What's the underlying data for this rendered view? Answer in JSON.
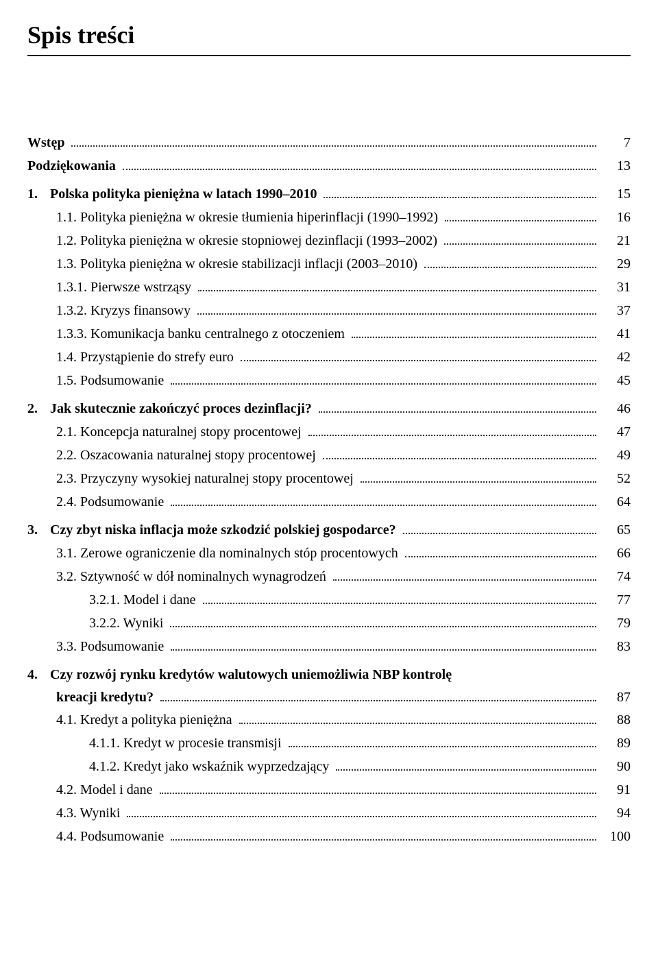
{
  "colors": {
    "background": "#ffffff",
    "text": "#000000",
    "dots": "#333333"
  },
  "typography": {
    "title_fontsize": 36,
    "body_fontsize": 20,
    "line_height": 1.65,
    "font_family": "Georgia, Times New Roman, serif"
  },
  "title": "Spis treści",
  "entries": [
    {
      "label": "Wstęp",
      "page": "7",
      "indent": 0,
      "bold": true,
      "gap": false
    },
    {
      "label": "Podziękowania",
      "page": "13",
      "indent": 0,
      "bold": true,
      "gap": false
    },
    {
      "num": "1.",
      "label": "Polska polityka pieniężna w latach 1990–2010",
      "page": "15",
      "indent": 0,
      "bold": true,
      "gap": true
    },
    {
      "label": "1.1. Polityka pieniężna w okresie tłumienia hiperinflacji (1990–1992)",
      "page": "16",
      "indent": 2,
      "bold": false
    },
    {
      "label": "1.2. Polityka pieniężna w okresie stopniowej dezinflacji (1993–2002)",
      "page": "21",
      "indent": 2,
      "bold": false
    },
    {
      "label": "1.3. Polityka pieniężna w okresie stabilizacji inflacji (2003–2010)",
      "page": "29",
      "indent": 2,
      "bold": false
    },
    {
      "label": "1.3.1. Pierwsze wstrząsy",
      "page": "31",
      "indent": 2,
      "bold": false
    },
    {
      "label": "1.3.2. Kryzys finansowy",
      "page": "37",
      "indent": 2,
      "bold": false
    },
    {
      "label": "1.3.3. Komunikacja banku centralnego z otoczeniem",
      "page": "41",
      "indent": 2,
      "bold": false
    },
    {
      "label": "1.4. Przystąpienie do strefy euro",
      "page": "42",
      "indent": 2,
      "bold": false
    },
    {
      "label": "1.5. Podsumowanie",
      "page": "45",
      "indent": 2,
      "bold": false
    },
    {
      "num": "2.",
      "label": "Jak skutecznie zakończyć proces dezinflacji?",
      "page": "46",
      "indent": 0,
      "bold": true,
      "gap": true
    },
    {
      "label": "2.1. Koncepcja naturalnej stopy procentowej",
      "page": "47",
      "indent": 2,
      "bold": false
    },
    {
      "label": "2.2. Oszacowania naturalnej stopy procentowej",
      "page": "49",
      "indent": 2,
      "bold": false
    },
    {
      "label": "2.3. Przyczyny wysokiej naturalnej stopy procentowej",
      "page": "52",
      "indent": 2,
      "bold": false
    },
    {
      "label": "2.4. Podsumowanie",
      "page": "64",
      "indent": 2,
      "bold": false
    },
    {
      "num": "3.",
      "label": "Czy zbyt niska inflacja może szkodzić polskiej gospodarce?",
      "page": "65",
      "indent": 0,
      "bold": true,
      "gap": true
    },
    {
      "label": "3.1. Zerowe ograniczenie dla nominalnych stóp procentowych",
      "page": "66",
      "indent": 2,
      "bold": false
    },
    {
      "label": "3.2. Sztywność w dół nominalnych wynagrodzeń",
      "page": "74",
      "indent": 2,
      "bold": false
    },
    {
      "label": "3.2.1. Model i dane",
      "page": "77",
      "indent": 3,
      "bold": false
    },
    {
      "label": "3.2.2. Wyniki",
      "page": "79",
      "indent": 3,
      "bold": false
    },
    {
      "label": "3.3. Podsumowanie",
      "page": "83",
      "indent": 2,
      "bold": false
    },
    {
      "wrap": true,
      "num": "4.",
      "line1": "Czy rozwój rynku kredytów walutowych uniemożliwia NBP kontrolę",
      "line2": "kreacji kredytu?",
      "page": "87",
      "gap": true
    },
    {
      "label": "4.1. Kredyt a polityka pieniężna",
      "page": "88",
      "indent": 2,
      "bold": false
    },
    {
      "label": "4.1.1. Kredyt w procesie transmisji",
      "page": "89",
      "indent": 3,
      "bold": false
    },
    {
      "label": "4.1.2. Kredyt jako wskaźnik wyprzedzający",
      "page": "90",
      "indent": 3,
      "bold": false
    },
    {
      "label": "4.2. Model i dane",
      "page": "91",
      "indent": 2,
      "bold": false
    },
    {
      "label": "4.3. Wyniki",
      "page": "94",
      "indent": 2,
      "bold": false
    },
    {
      "label": "4.4. Podsumowanie",
      "page": "100",
      "indent": 2,
      "bold": false
    }
  ]
}
